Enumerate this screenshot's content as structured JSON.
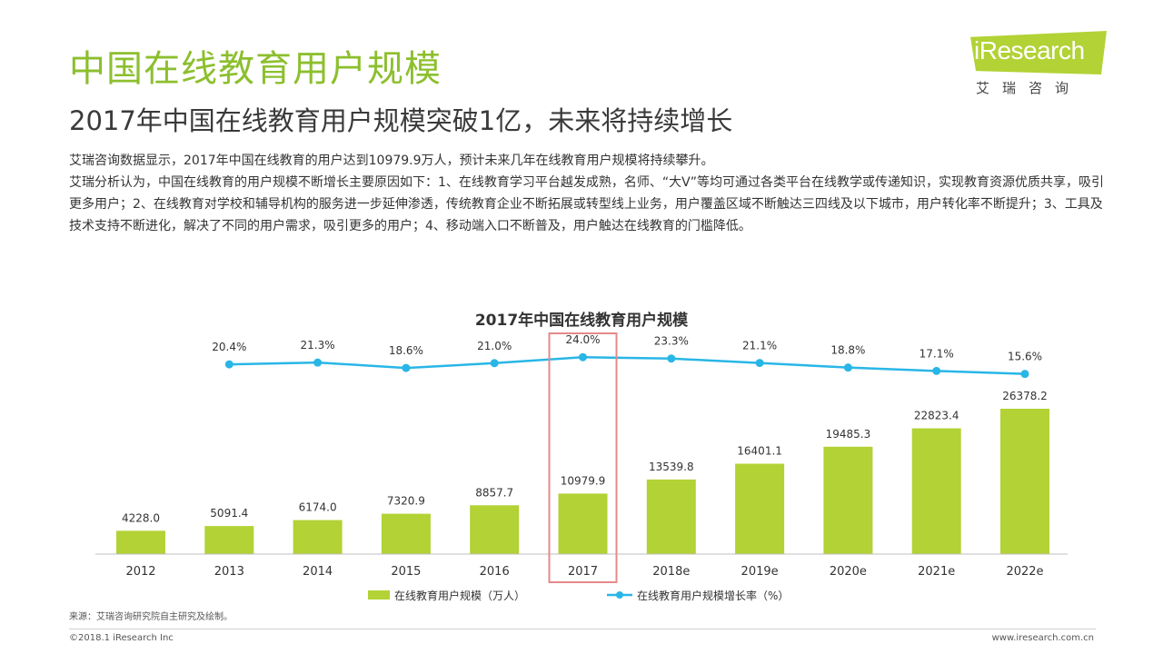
{
  "header": {
    "title": "中国在线教育用户规模",
    "subtitle": "2017年中国在线教育用户规模突破1亿，未来将持续增长"
  },
  "description": [
    "艾瑞咨询数据显示，2017年中国在线教育的用户达到10979.9万人，预计未来几年在线教育用户规模将持续攀升。",
    "艾瑞分析认为，中国在线教育的用户规模不断增长主要原因如下：1、在线教育学习平台越发成熟，名师、“大V”等均可通过各类平台在线教学或传递知识，实现教育资源优质共享，吸引更多用户；2、在线教育对学校和辅导机构的服务进一步延伸渗透，传统教育企业不断拓展或转型线上业务，用户覆盖区域不断触达三四线及以下城市，用户转化率不断提升；3、工具及技术支持不断进化，解决了不同的用户需求，吸引更多的用户；4、移动端入口不断普及，用户触达在线教育的门槛降低。"
  ],
  "logo": {
    "text": "iResearch",
    "sub": "艾瑞咨询"
  },
  "chart_data": {
    "type": "bar",
    "title": "2017年中国在线教育用户规模",
    "categories": [
      "2012",
      "2013",
      "2014",
      "2015",
      "2016",
      "2017",
      "2018e",
      "2019e",
      "2020e",
      "2021e",
      "2022e"
    ],
    "series": [
      {
        "name": "在线教育用户规模（万人）",
        "type": "bar",
        "color": "#b2d235",
        "values": [
          4228.0,
          5091.4,
          6174.0,
          7320.9,
          8857.7,
          10979.9,
          13539.8,
          16401.1,
          19485.3,
          22823.4,
          26378.2
        ],
        "labels": [
          "4228.0",
          "5091.4",
          "6174.0",
          "7320.9",
          "8857.7",
          "10979.9",
          "13539.8",
          "16401.1",
          "19485.3",
          "22823.4",
          "26378.2"
        ]
      },
      {
        "name": "在线教育用户规模增长率（%）",
        "type": "line",
        "color": "#29b6e6",
        "values": [
          20.4,
          21.3,
          18.6,
          21.0,
          24.0,
          23.3,
          21.1,
          18.8,
          17.1,
          15.6
        ],
        "x": [
          "2013",
          "2014",
          "2015",
          "2016",
          "2017",
          "2018e",
          "2019e",
          "2020e",
          "2021e",
          "2022e"
        ],
        "labels": [
          "20.4%",
          "21.3%",
          "18.6%",
          "21.0%",
          "24.0%",
          "23.3%",
          "21.1%",
          "18.8%",
          "17.1%",
          "15.6%"
        ]
      }
    ],
    "highlight_category": "2017",
    "highlight_color": "#e58a8a",
    "legend_position": "bottom",
    "grid": false
  },
  "footer": {
    "source": "来源：艾瑞咨询研究院自主研究及绘制。",
    "copyright": "©2018.1 iResearch Inc",
    "url": "www.iresearch.com.cn"
  }
}
